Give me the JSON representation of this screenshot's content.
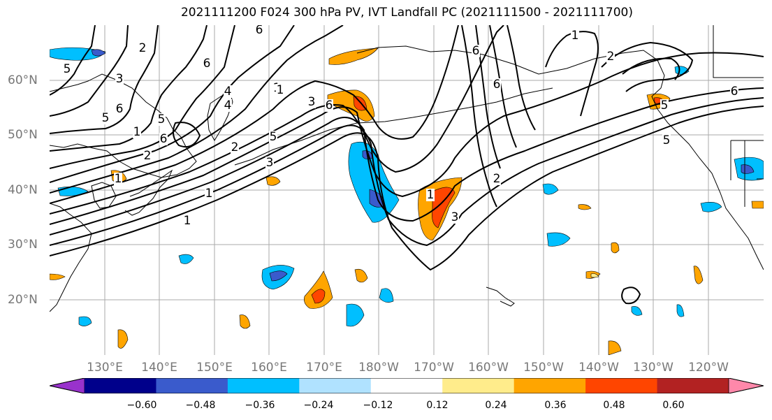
{
  "title": "2021111200 F024 300 hPa PV, IVT Landfall PC (2021111500 - 2021111700)",
  "lon_labels": [
    "130°E",
    "140°E",
    "150°E",
    "160°E",
    "170°E",
    "180°W",
    "170°W",
    "160°W",
    "150°W",
    "140°W",
    "130°W",
    "120°W"
  ],
  "lat_labels": [
    "60°N",
    "50°N",
    "40°N",
    "30°N",
    "20°N"
  ],
  "colorbar": {
    "colors": [
      "#9932cc",
      "#00008b",
      "#3a5bcc",
      "#00bfff",
      "#b0e2ff",
      "#ffffff",
      "#ffec8b",
      "#ffa500",
      "#ff4500",
      "#b22222",
      "#ff88aa"
    ],
    "ticks": [
      "−0.60",
      "−0.48",
      "−0.36",
      "−0.24",
      "−0.12",
      "0.12",
      "0.24",
      "0.36",
      "0.48",
      "0.60"
    ]
  },
  "contour_labels": [
    "6",
    "2",
    "6",
    "5",
    "3",
    "1",
    "5",
    "4",
    "6",
    "5",
    "1",
    "6",
    "2",
    "6",
    "3",
    "5",
    "1",
    "4",
    "1",
    "1",
    "3",
    "2",
    "1",
    "5",
    "6",
    "6",
    "1",
    "2",
    "3",
    "5",
    "6",
    "1",
    "2"
  ],
  "colors": {
    "land_border": "#000000",
    "grid": "#aaaaaa",
    "pv_contour": "#000000"
  }
}
